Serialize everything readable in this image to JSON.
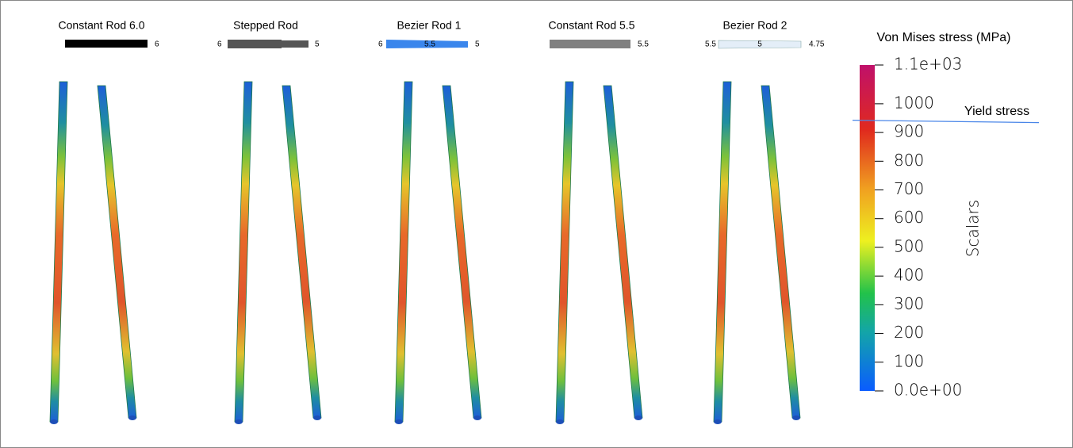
{
  "rods": [
    {
      "title": "Constant Rod 6.0",
      "profile": [
        "6"
      ]
    },
    {
      "title": "Stepped Rod",
      "profile": [
        "6",
        "5"
      ]
    },
    {
      "title": "Bezier Rod 1",
      "profile": [
        "6",
        "5.5",
        "5"
      ]
    },
    {
      "title": "Constant Rod 5.5",
      "profile": [
        "5.5"
      ]
    },
    {
      "title": "Bezier Rod 2",
      "profile": [
        "5.5",
        "5",
        "4.75"
      ]
    }
  ],
  "colorbar": {
    "title": "Von Mises stress (MPa)",
    "axis_label": "Scalars",
    "range": [
      0,
      1135
    ],
    "ticks": [
      {
        "value": 1135,
        "label": "1.1e+03"
      },
      1000,
      900,
      800,
      700,
      600,
      500,
      400,
      300,
      200,
      100,
      {
        "value": 0,
        "label": "0.0e+00"
      }
    ],
    "yield": {
      "label": "Yield stress",
      "value": 940
    }
  }
}
